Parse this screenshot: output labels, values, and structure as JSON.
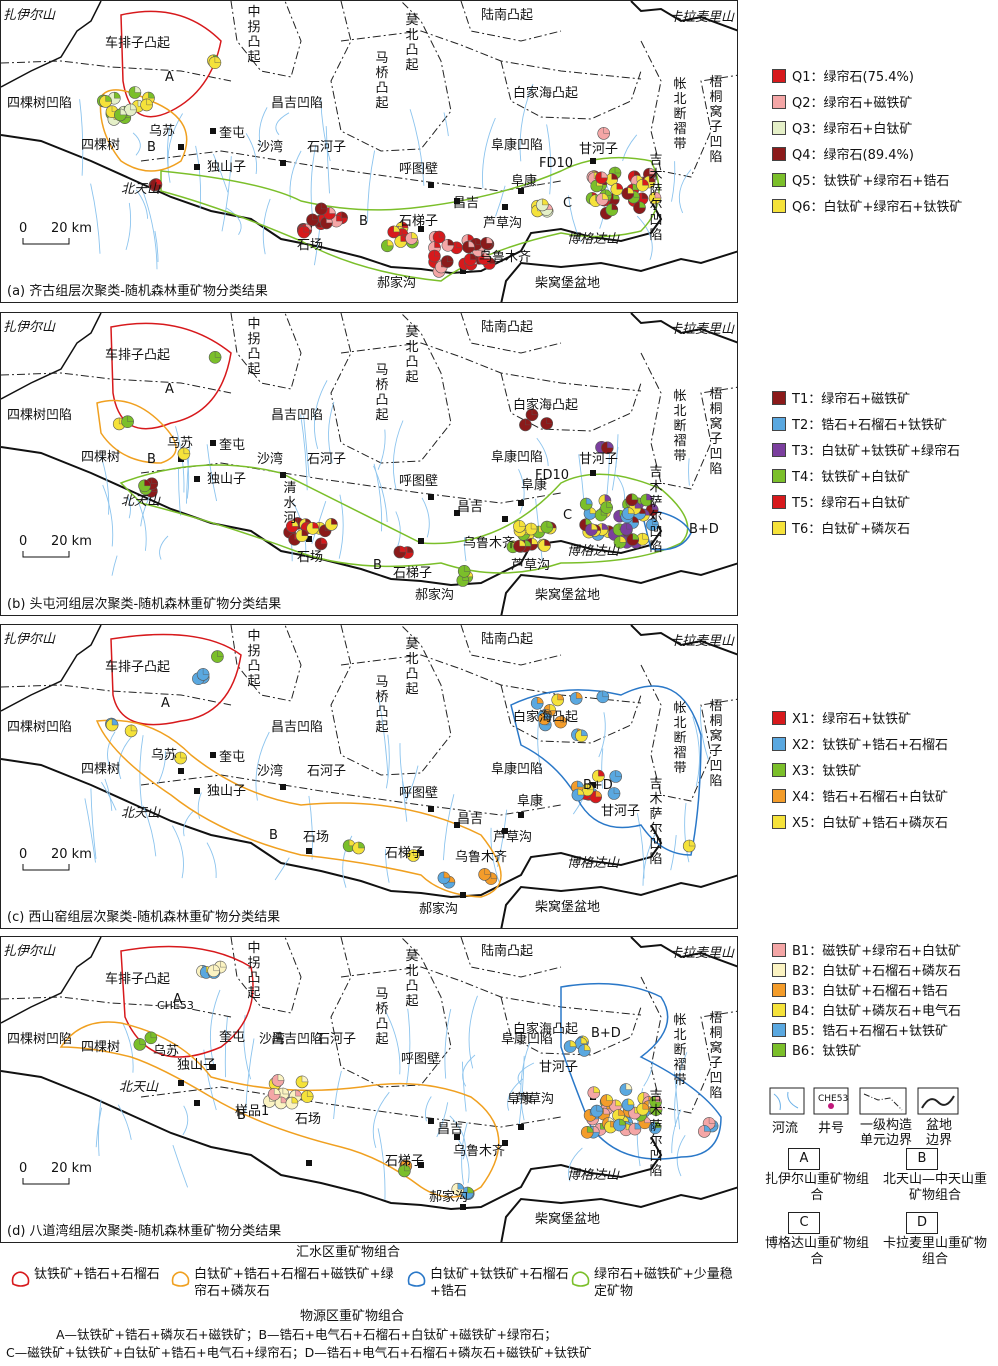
{
  "panels": [
    {
      "caption": "(a) 齐古组层次聚类-随机森林重矿物分类结果",
      "places": [
        "扎伊尔山",
        "车排子凸起",
        "中拐凸起",
        "莫北凸起",
        "陆南凸起",
        "卡拉麦里山",
        "四棵树凹陷",
        "乌苏",
        "奎屯",
        "四棵树",
        "独山子",
        "昌吉凹陷",
        "沙湾",
        "石河子",
        "呼图壁",
        "阜康凹陷",
        "甘河子",
        "FD10",
        "吉木萨尔凹陷",
        "梧桐窝子凹陷",
        "帐北断褶带",
        "白家海凸起",
        "马桥凸起",
        "北天山",
        "石场",
        "石梯子",
        "昌吉",
        "芦草沟",
        "阜康",
        "乌鲁木齐",
        "博格达山",
        "郝家沟",
        "柴窝堡盆地",
        "A",
        "B",
        "B",
        "C"
      ],
      "scale": "20 km",
      "scale_zero": "0",
      "legend": [
        {
          "code": "Q1",
          "label": "绿帘石(75.4%)",
          "color": "#d7191c"
        },
        {
          "code": "Q2",
          "label": "绿帘石+磁铁矿",
          "color": "#f4a6a6"
        },
        {
          "code": "Q3",
          "label": "绿帘石+白钛矿",
          "color": "#e5f0c8"
        },
        {
          "code": "Q4",
          "label": "绿帘石(89.4%)",
          "color": "#8b1a1a"
        },
        {
          "code": "Q5",
          "label": "钛铁矿+绿帘石+锆石",
          "color": "#7bbf2a"
        },
        {
          "code": "Q6",
          "label": "白钛矿+绿帘石+钛铁矿",
          "color": "#f5e23a"
        }
      ]
    },
    {
      "caption": "(b) 头屯河组层次聚类-随机森林重矿物分类结果",
      "places": [
        "扎伊尔山",
        "车排子凸起",
        "中拐凸起",
        "莫北凸起",
        "陆南凸起",
        "卡拉麦里山",
        "四棵树凹陷",
        "乌苏",
        "奎屯",
        "四棵树",
        "独山子",
        "昌吉凹陷",
        "沙湾",
        "石河子",
        "呼图壁",
        "阜康凹陷",
        "甘河子",
        "FD10",
        "吉木萨尔凹陷",
        "梧桐窝子凹陷",
        "帐北断褶带",
        "白家海凸起",
        "马桥凸起",
        "北天山",
        "石场",
        "石梯子",
        "昌吉",
        "芦草沟",
        "阜康",
        "乌鲁木齐",
        "博格达山",
        "郝家沟",
        "柴窝堡盆地",
        "清水河",
        "A",
        "B",
        "B",
        "C",
        "B+D"
      ],
      "scale": "20 km",
      "scale_zero": "0",
      "legend": [
        {
          "code": "T1",
          "label": "绿帘石+磁铁矿",
          "color": "#8b1a1a"
        },
        {
          "code": "T2",
          "label": "锆石+石榴石+钛铁矿",
          "color": "#5aa8e0"
        },
        {
          "code": "T3",
          "label": "白钛矿+钛铁矿+绿帘石",
          "color": "#7b3f9e"
        },
        {
          "code": "T4",
          "label": "钛铁矿+白钛矿",
          "color": "#7bbf2a"
        },
        {
          "code": "T5",
          "label": "绿帘石+白钛矿",
          "color": "#d7191c"
        },
        {
          "code": "T6",
          "label": "白钛矿+磷灰石",
          "color": "#f5e23a"
        }
      ]
    },
    {
      "caption": "(c) 西山窑组层次聚类-随机森林重矿物分类结果",
      "places": [
        "扎伊尔山",
        "车排子凸起",
        "中拐凸起",
        "莫北凸起",
        "陆南凸起",
        "卡拉麦里山",
        "四棵树凹陷",
        "乌苏",
        "奎屯",
        "四棵树",
        "独山子",
        "昌吉凹陷",
        "沙湾",
        "石河子",
        "呼图壁",
        "阜康凹陷",
        "甘河子",
        "吉木萨尔凹陷",
        "梧桐窝子凹陷",
        "帐北断褶带",
        "白家海凸起",
        "马桥凸起",
        "北天山",
        "石场",
        "石梯子",
        "昌吉",
        "芦草沟",
        "阜康",
        "乌鲁木齐",
        "博格达山",
        "郝家沟",
        "柴窝堡盆地",
        "A",
        "B",
        "B+D"
      ],
      "scale": "20 km",
      "scale_zero": "0",
      "legend": [
        {
          "code": "X1",
          "label": "绿帘石+钛铁矿",
          "color": "#d7191c"
        },
        {
          "code": "X2",
          "label": "钛铁矿+锆石+石榴石",
          "color": "#5aa8e0"
        },
        {
          "code": "X3",
          "label": "钛铁矿",
          "color": "#7bbf2a"
        },
        {
          "code": "X4",
          "label": "锆石+石榴石+白钛矿",
          "color": "#f39c2a"
        },
        {
          "code": "X5",
          "label": "白钛矿+锆石+磷灰石",
          "color": "#f5e23a"
        }
      ]
    },
    {
      "caption": "(d) 八道湾组层次聚类-随机森林重矿物分类结果",
      "places": [
        "扎伊尔山",
        "车排子凸起",
        "中拐凸起",
        "莫北凸起",
        "陆南凸起",
        "卡拉麦里山",
        "四棵树凹陷",
        "乌苏",
        "奎屯",
        "四棵树",
        "独山子",
        "昌吉凹陷",
        "沙湾",
        "石河子",
        "呼图壁",
        "阜康凹陷",
        "甘河子",
        "吉木萨尔凹陷",
        "梧桐窝子凹陷",
        "帐北断褶带",
        "白家海凸起",
        "马桥凸起",
        "北天山",
        "石场",
        "石梯子",
        "昌吉",
        "芦草沟",
        "阜康",
        "乌鲁木齐",
        "博格达山",
        "郝家沟",
        "柴窝堡盆地",
        "CHE53",
        "样品1",
        "A",
        "B",
        "B+D"
      ],
      "scale": "20 km",
      "scale_zero": "0",
      "legend": [
        {
          "code": "B1",
          "label": "磁铁矿+绿帘石+白钛矿",
          "color": "#f4a6a6"
        },
        {
          "code": "B2",
          "label": "白钛矿+石榴石+磷灰石",
          "color": "#fbf3c2"
        },
        {
          "code": "B3",
          "label": "白钛矿+石榴石+锆石",
          "color": "#f39c2a"
        },
        {
          "code": "B4",
          "label": "白钛矿+磷灰石+电气石",
          "color": "#f5e23a"
        },
        {
          "code": "B5",
          "label": "锆石+石榴石+钛铁矿",
          "color": "#5aa8e0"
        },
        {
          "code": "B6",
          "label": "钛铁矿",
          "color": "#7bbf2a"
        }
      ]
    }
  ],
  "symbols": {
    "river": "河流",
    "well": "井号",
    "well_sample": "CHE53",
    "boundary": "一级构造单元边界",
    "basin": "盆地边界"
  },
  "source_boxes": [
    {
      "code": "A",
      "label": "扎伊尔山重矿物组合"
    },
    {
      "code": "B",
      "label": "北天山—中天山重矿物组合"
    },
    {
      "code": "C",
      "label": "博格达山重矿物组合"
    },
    {
      "code": "D",
      "label": "卡拉麦里山重矿物组合"
    }
  ],
  "catchment": {
    "title": "汇水区重矿物组合",
    "items": [
      {
        "label": "钛铁矿+锆石+石榴石",
        "color": "#d7191c"
      },
      {
        "label": "白钛矿+锆石+石榴石+磁铁矿+绿帘石+磷灰石",
        "color": "#f0a020"
      },
      {
        "label": "白钛矿+钛铁矿+石榴石+锆石",
        "color": "#2a78c8"
      },
      {
        "label": "绿帘石+磁铁矿+少量稳定矿物",
        "color": "#7bbf2a"
      }
    ]
  },
  "provenance": {
    "title": "物源区重矿物组合",
    "lines": [
      "A—钛铁矿+锆石+磷灰石+磁铁矿；B—锆石+电气石+石榴石+白钛矿+磁铁矿+绿帘石；",
      "C—磁铁矿+钛铁矿+白钛矿+锆石+电气石+绿帘石；D—锆石+电气石+石榴石+磷灰石+磁铁矿+钛铁矿"
    ]
  }
}
